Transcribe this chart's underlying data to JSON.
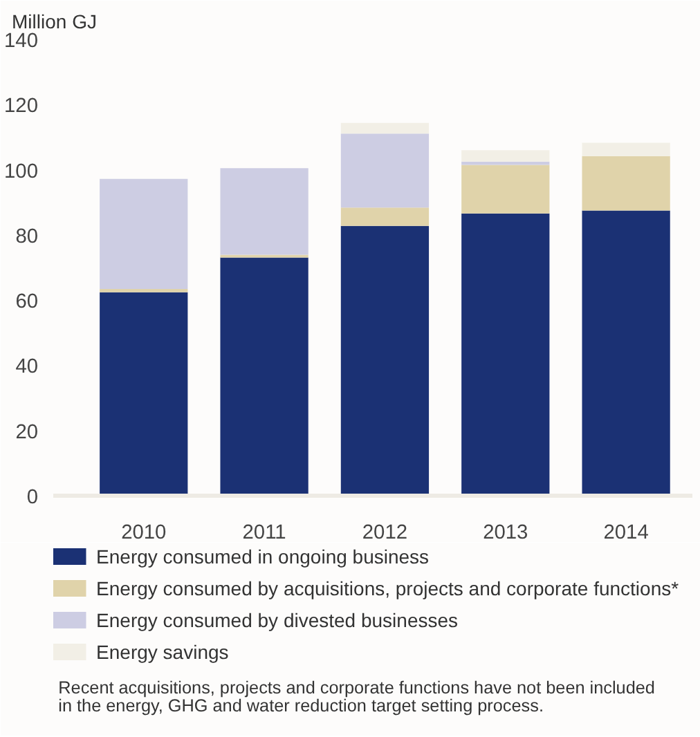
{
  "chart_data": {
    "type": "bar",
    "stacked": true,
    "ylabel": "Million GJ",
    "categories": [
      "2010",
      "2011",
      "2012",
      "2013",
      "2014"
    ],
    "series": [
      {
        "name": "Energy consumed in ongoing business",
        "color": "#1b3174",
        "values": [
          62.4,
          73.1,
          82.8,
          86.6,
          87.5
        ]
      },
      {
        "name": "Energy consumed by acquisitions, projects and corporate functions*",
        "color": "#e0d3aa",
        "values": [
          1.0,
          0.8,
          5.6,
          14.9,
          16.7
        ]
      },
      {
        "name": "Energy consumed by divested businesses",
        "color": "#cdcde3",
        "values": [
          33.8,
          26.6,
          22.7,
          1.0,
          0
        ]
      },
      {
        "name": "Energy savings",
        "color": "#f2efe6",
        "values": [
          0,
          0,
          3.3,
          3.5,
          4.1
        ]
      }
    ],
    "ylim": [
      0,
      140
    ],
    "yticks": [
      0,
      20,
      40,
      60,
      80,
      100,
      120,
      140
    ],
    "grid": false,
    "legend": "bottom",
    "annotations": [
      "Recent acquisitions, projects and corporate functions have not been included in the energy, GHG and water reduction target setting process."
    ]
  }
}
